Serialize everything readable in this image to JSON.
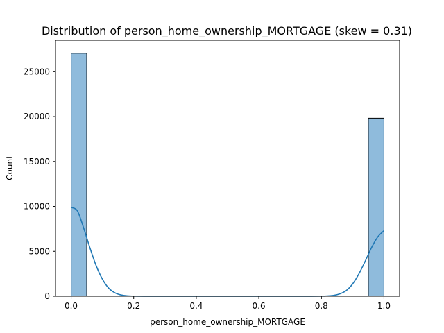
{
  "chart_data": {
    "type": "bar",
    "title": "Distribution of person_home_ownership_MORTGAGE (skew = 0.31)",
    "xlabel": "person_home_ownership_MORTGAGE",
    "ylabel": "Count",
    "xlim": [
      -0.05,
      1.05
    ],
    "ylim": [
      0,
      28500
    ],
    "x_ticks": [
      0.0,
      0.2,
      0.4,
      0.6,
      0.8,
      1.0
    ],
    "x_tick_labels": [
      "0.0",
      "0.2",
      "0.4",
      "0.6",
      "0.8",
      "1.0"
    ],
    "y_ticks": [
      0,
      5000,
      10000,
      15000,
      20000,
      25000
    ],
    "y_tick_labels": [
      "0",
      "5000",
      "10000",
      "15000",
      "20000",
      "25000"
    ],
    "bins": [
      {
        "x0": 0.0,
        "x1": 0.05,
        "count": 27050
      },
      {
        "x0": 0.95,
        "x1": 1.0,
        "count": 19820
      }
    ],
    "kde": {
      "x": [
        0.0,
        0.02,
        0.04,
        0.06,
        0.08,
        0.1,
        0.12,
        0.14,
        0.16,
        0.18,
        0.2,
        0.25,
        0.3,
        0.4,
        0.5,
        0.6,
        0.7,
        0.75,
        0.8,
        0.82,
        0.84,
        0.86,
        0.88,
        0.9,
        0.92,
        0.94,
        0.96,
        0.98,
        1.0
      ],
      "y": [
        9900,
        9500,
        7600,
        5400,
        3400,
        1900,
        900,
        380,
        140,
        45,
        10,
        0,
        0,
        0,
        0,
        0,
        0,
        0,
        10,
        35,
        100,
        280,
        650,
        1380,
        2500,
        3900,
        5400,
        6600,
        7300
      ]
    },
    "grid": false,
    "colors": {
      "bar_fill": "#8fbbdc",
      "bar_edge": "#000000",
      "kde_line": "#1f77b4"
    }
  }
}
